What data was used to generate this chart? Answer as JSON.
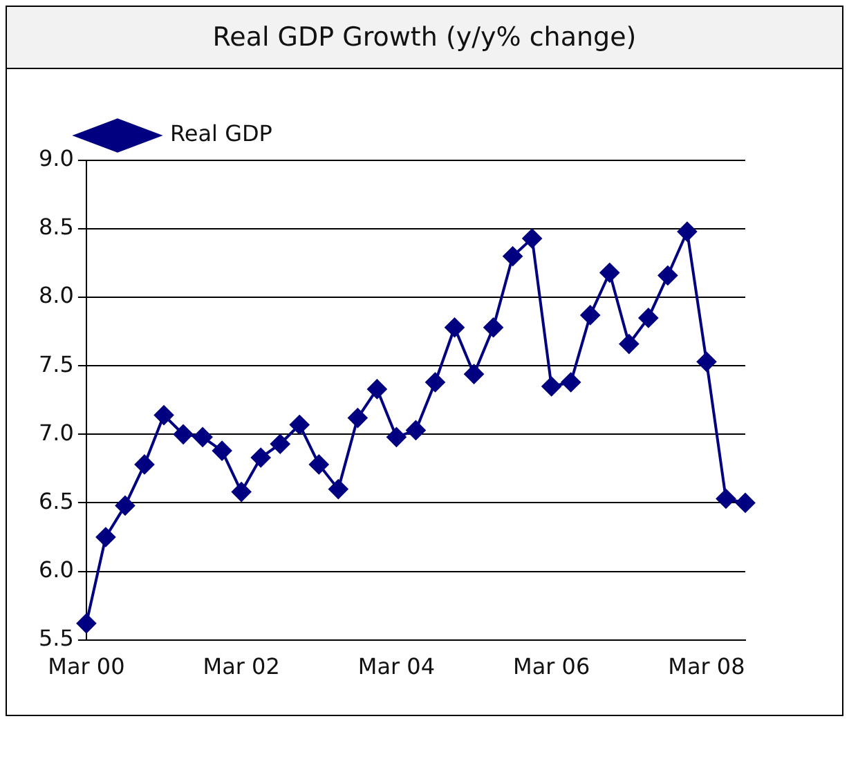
{
  "chart_data": {
    "type": "line",
    "title": "Real GDP Growth (y/y% change)",
    "categories": [
      "Mar 00",
      null,
      null,
      null,
      null,
      null,
      null,
      null,
      "Mar 02",
      null,
      null,
      null,
      null,
      null,
      null,
      null,
      "Mar 04",
      null,
      null,
      null,
      null,
      null,
      null,
      null,
      "Mar 06",
      null,
      null,
      null,
      null,
      null,
      null,
      null,
      "Mar 08",
      null,
      null
    ],
    "series": [
      {
        "name": "Real GDP",
        "color": "#000080",
        "values": [
          5.62,
          6.25,
          6.48,
          6.78,
          7.14,
          7.0,
          6.98,
          6.88,
          6.58,
          6.83,
          6.93,
          7.07,
          6.78,
          6.6,
          7.12,
          7.33,
          6.98,
          7.03,
          7.38,
          7.78,
          7.44,
          7.78,
          8.3,
          8.43,
          7.35,
          7.38,
          7.87,
          8.18,
          7.66,
          7.85,
          8.16,
          8.48,
          7.53,
          6.53,
          6.5
        ]
      }
    ],
    "ylim": [
      5.5,
      9.0
    ],
    "yticks": [
      {
        "value": 5.5,
        "label": "5.5"
      },
      {
        "value": 6.0,
        "label": "6.0"
      },
      {
        "value": 6.5,
        "label": "6.5"
      },
      {
        "value": 7.0,
        "label": "7.0"
      },
      {
        "value": 7.5,
        "label": "7.5"
      },
      {
        "value": 8.0,
        "label": "8.0"
      },
      {
        "value": 8.5,
        "label": "8.5"
      },
      {
        "value": 9.0,
        "label": "9.0"
      }
    ],
    "grid": "y",
    "legend": "top left",
    "marker": "diamond",
    "line_style": "solid"
  }
}
